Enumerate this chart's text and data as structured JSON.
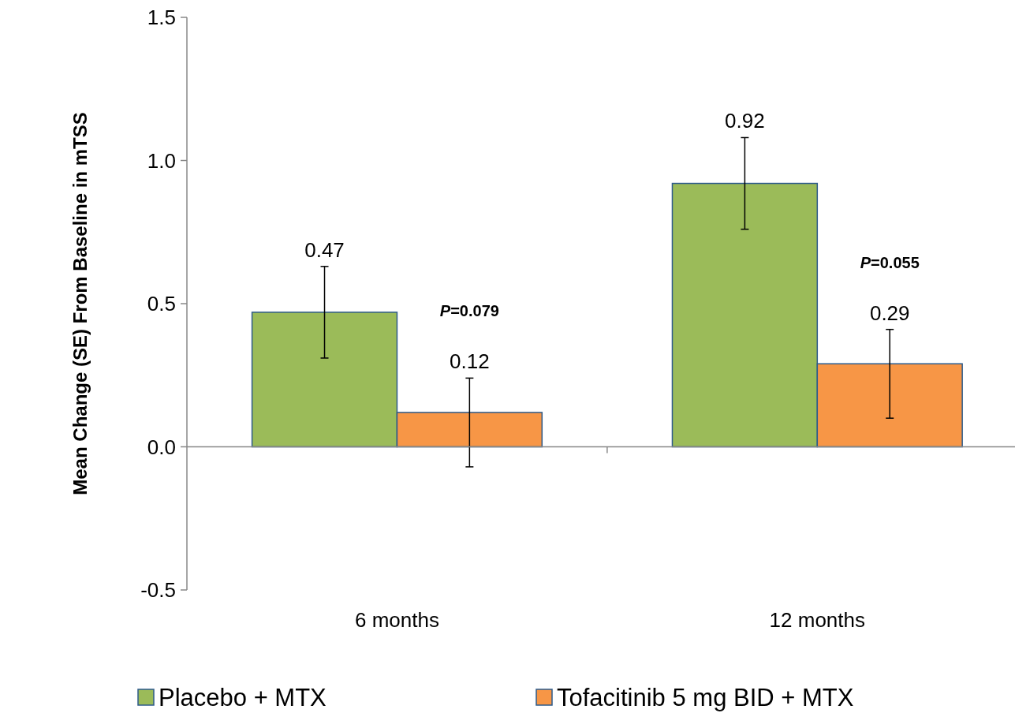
{
  "chart_data": {
    "type": "bar",
    "ylabel": "Mean Change (SE) From Baseline in mTSS",
    "categories": [
      "6 months",
      "12 months"
    ],
    "series": [
      {
        "name": "Placebo + MTX",
        "color": "#9bbb59",
        "values": [
          0.47,
          0.92
        ],
        "errors": [
          0.16,
          0.16
        ]
      },
      {
        "name": "Tofacitinib 5 mg BID + MTX",
        "color": "#f79646",
        "values": [
          0.12,
          0.29
        ],
        "errors": [
          [
            -0.07,
            0.24
          ],
          [
            0.1,
            0.41
          ]
        ]
      }
    ],
    "ylim": [
      -0.5,
      1.5
    ],
    "yticks": [
      {
        "value": -0.5,
        "label": "-0.5"
      },
      {
        "value": 0,
        "label": "0.0"
      },
      {
        "value": 0.5,
        "label": "0.5"
      },
      {
        "value": 1,
        "label": "1.0"
      },
      {
        "value": 1.5,
        "label": "1.5"
      }
    ],
    "data_labels": true,
    "legend": "bottom",
    "annotations": [
      "P=0.079",
      "P=0.055"
    ]
  }
}
